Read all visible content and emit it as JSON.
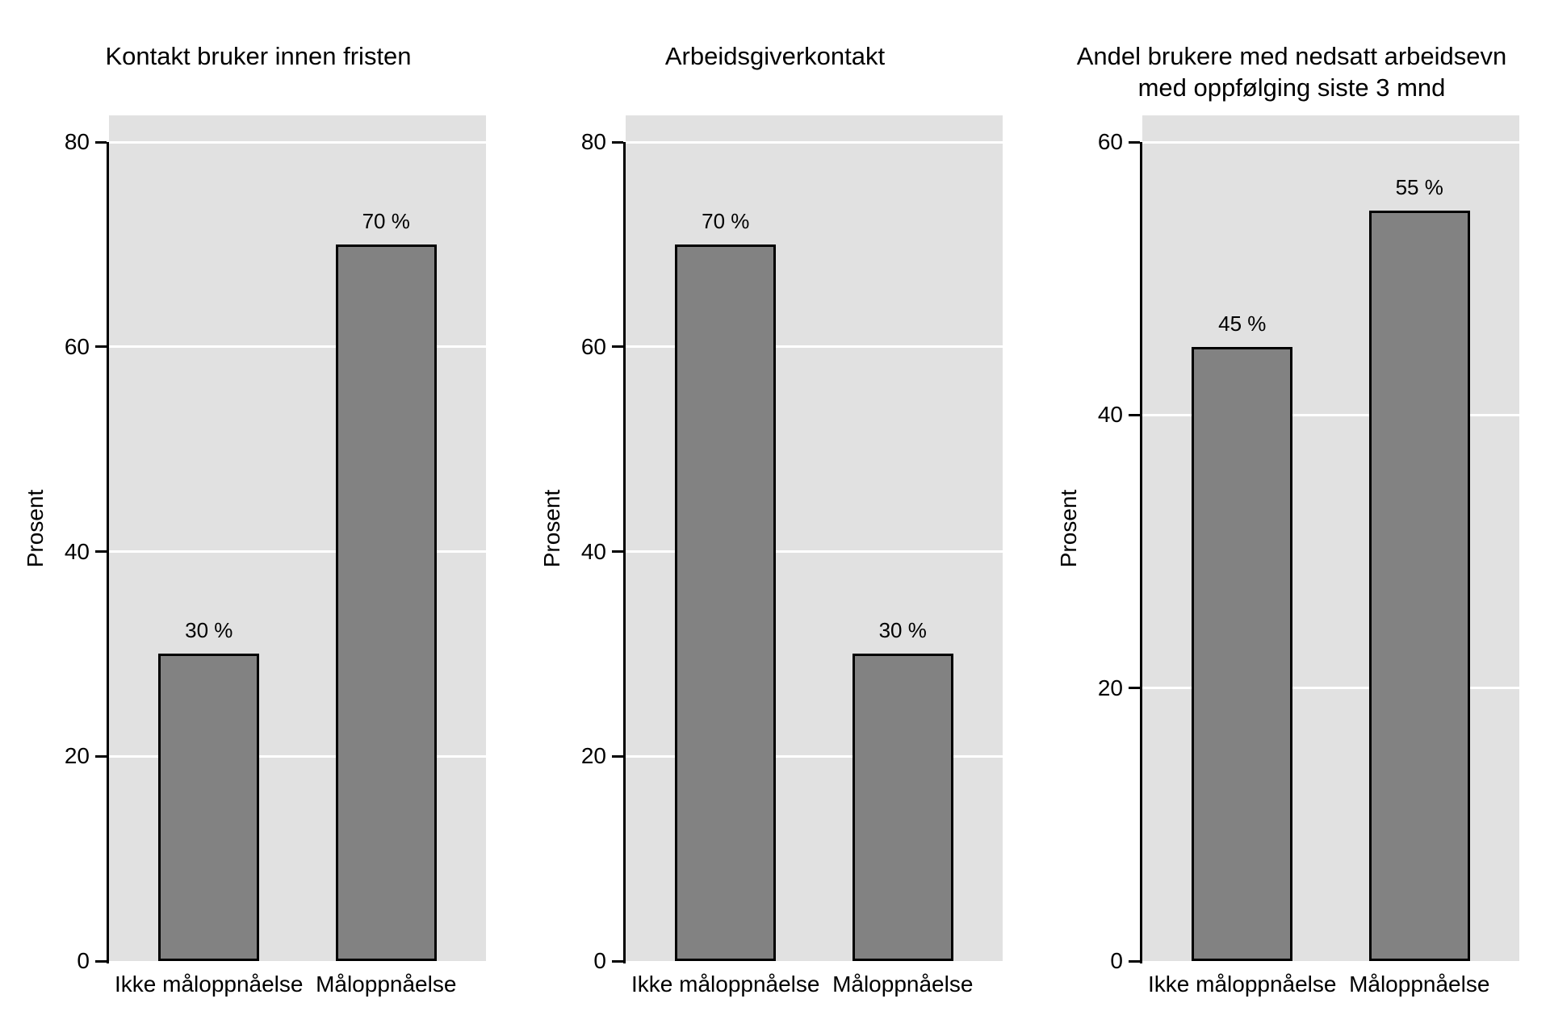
{
  "figure": {
    "background": "#ffffff",
    "plot_background": "#e1e1e1",
    "grid_color": "#ffffff",
    "bar_fill": "#828282",
    "bar_border": "#000000",
    "text_color": "#000000"
  },
  "chart_data": [
    {
      "type": "bar",
      "title": "Kontakt bruker innen fristen",
      "ylabel": "Prosent",
      "xlabel": "",
      "categories": [
        "Ikke måloppnåelse",
        "Måloppnåelse"
      ],
      "values": [
        30,
        70
      ],
      "value_labels": [
        "30 %",
        "70 %"
      ],
      "ylim": [
        0,
        80
      ],
      "yticks": [
        0,
        20,
        40,
        60,
        80
      ],
      "grid": "horizontal-white",
      "legend": "none"
    },
    {
      "type": "bar",
      "title": "Arbeidsgiverkontakt",
      "ylabel": "Prosent",
      "xlabel": "",
      "categories": [
        "Ikke måloppnåelse",
        "Måloppnåelse"
      ],
      "values": [
        70,
        30
      ],
      "value_labels": [
        "70 %",
        "30 %"
      ],
      "ylim": [
        0,
        80
      ],
      "yticks": [
        0,
        20,
        40,
        60,
        80
      ],
      "grid": "horizontal-white",
      "legend": "none"
    },
    {
      "type": "bar",
      "title": "Andel brukere med nedsatt arbeidsevn\nmed oppfølging siste 3 mnd",
      "ylabel": "Prosent",
      "xlabel": "",
      "categories": [
        "Ikke måloppnåelse",
        "Måloppnåelse"
      ],
      "values": [
        45,
        55
      ],
      "value_labels": [
        "45 %",
        "55 %"
      ],
      "ylim": [
        0,
        60
      ],
      "yticks": [
        0,
        20,
        40,
        60
      ],
      "grid": "horizontal-white",
      "legend": "none"
    }
  ]
}
